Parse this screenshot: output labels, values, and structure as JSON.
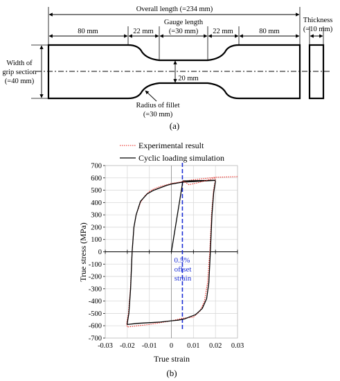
{
  "figure_a": {
    "overall_length": "Overall length (=234 mm)",
    "gauge_length": "Gauge length",
    "gauge_length_value": "(=30 mm)",
    "grip_left": "80 mm",
    "fillet_left": "22 mm",
    "fillet_right": "22 mm",
    "grip_right": "80 mm",
    "thickness": "Thickness",
    "thickness_value": "(=10 mm)",
    "width_grip_1": "Width of",
    "width_grip_2": "grip section",
    "width_grip_3": "(=40 mm)",
    "gauge_width": "20 mm",
    "radius_fillet": "Radius of fillet",
    "radius_fillet_value": "(=30 mm)",
    "caption": "(a)"
  },
  "figure_b": {
    "caption": "(b)",
    "annotation": [
      "0.5%",
      "offset",
      "strain"
    ]
  },
  "chart_data": {
    "type": "line",
    "xlabel": "True strain",
    "ylabel": "True stress (MPa)",
    "xlim": [
      -0.03,
      0.03
    ],
    "ylim": [
      -700,
      700
    ],
    "xticks": [
      "-0.03",
      "-0.02",
      "-0.01",
      "0",
      "0.01",
      "0.02",
      "0.03"
    ],
    "yticks": [
      "700",
      "600",
      "500",
      "400",
      "300",
      "200",
      "100",
      "0",
      "-100",
      "-200",
      "-300",
      "-400",
      "-500",
      "-600",
      "-700"
    ],
    "grid": true,
    "legend": "top-left",
    "offset_line_x": 0.005,
    "series": [
      {
        "name": "Experimental result",
        "style": "dotted",
        "color": "#e8221a",
        "x": [
          0.02,
          0.0191,
          0.0182,
          0.0174,
          0.0164,
          0.015,
          0.013,
          0.01,
          0.005,
          0.0,
          -0.005,
          -0.01,
          -0.015,
          -0.02,
          -0.0203,
          -0.0195,
          -0.0186,
          -0.0178,
          -0.017,
          -0.016,
          -0.014,
          -0.012,
          -0.01,
          -0.008,
          -0.005,
          -0.002,
          0.0,
          0.005,
          0.01,
          0.015,
          0.02,
          0.03
        ],
        "y": [
          590,
          500,
          300,
          0,
          -250,
          -400,
          -480,
          -530,
          -540,
          -560,
          -575,
          -590,
          -600,
          -610,
          -580,
          -500,
          -300,
          0,
          200,
          300,
          400,
          455,
          490,
          510,
          530,
          545,
          555,
          570,
          585,
          595,
          605,
          610
        ]
      },
      {
        "name": "Cyclic loading simulation",
        "style": "solid",
        "color": "#000000",
        "x": [
          0.02,
          0.0192,
          0.0184,
          0.0177,
          0.017,
          0.016,
          0.014,
          0.011,
          0.008,
          0.006,
          0.003,
          0.0,
          -0.005,
          -0.01,
          -0.015,
          -0.02,
          -0.02,
          -0.0193,
          -0.0185,
          -0.0178,
          -0.017,
          -0.016,
          -0.014,
          -0.011,
          -0.008,
          -0.005,
          -0.002,
          0.0,
          0.005,
          0.01,
          0.015,
          0.02
        ],
        "y": [
          575,
          480,
          300,
          0,
          -250,
          -380,
          -460,
          -510,
          -530,
          -545,
          -555,
          -560,
          -570,
          -575,
          -580,
          -590,
          -580,
          -500,
          -300,
          0,
          200,
          300,
          410,
          470,
          500,
          520,
          540,
          550,
          565,
          570,
          575,
          580
        ]
      },
      {
        "name": "",
        "style": "solid",
        "color": "#000000",
        "x": [
          0.0,
          0.0052,
          0.02
        ],
        "y": [
          0,
          575,
          580
        ]
      },
      {
        "name": "",
        "style": "dotted",
        "color": "#e8221a",
        "x": [
          0.0052,
          0.008,
          0.012,
          0.02
        ],
        "y": [
          575,
          545,
          560,
          600
        ]
      }
    ]
  }
}
